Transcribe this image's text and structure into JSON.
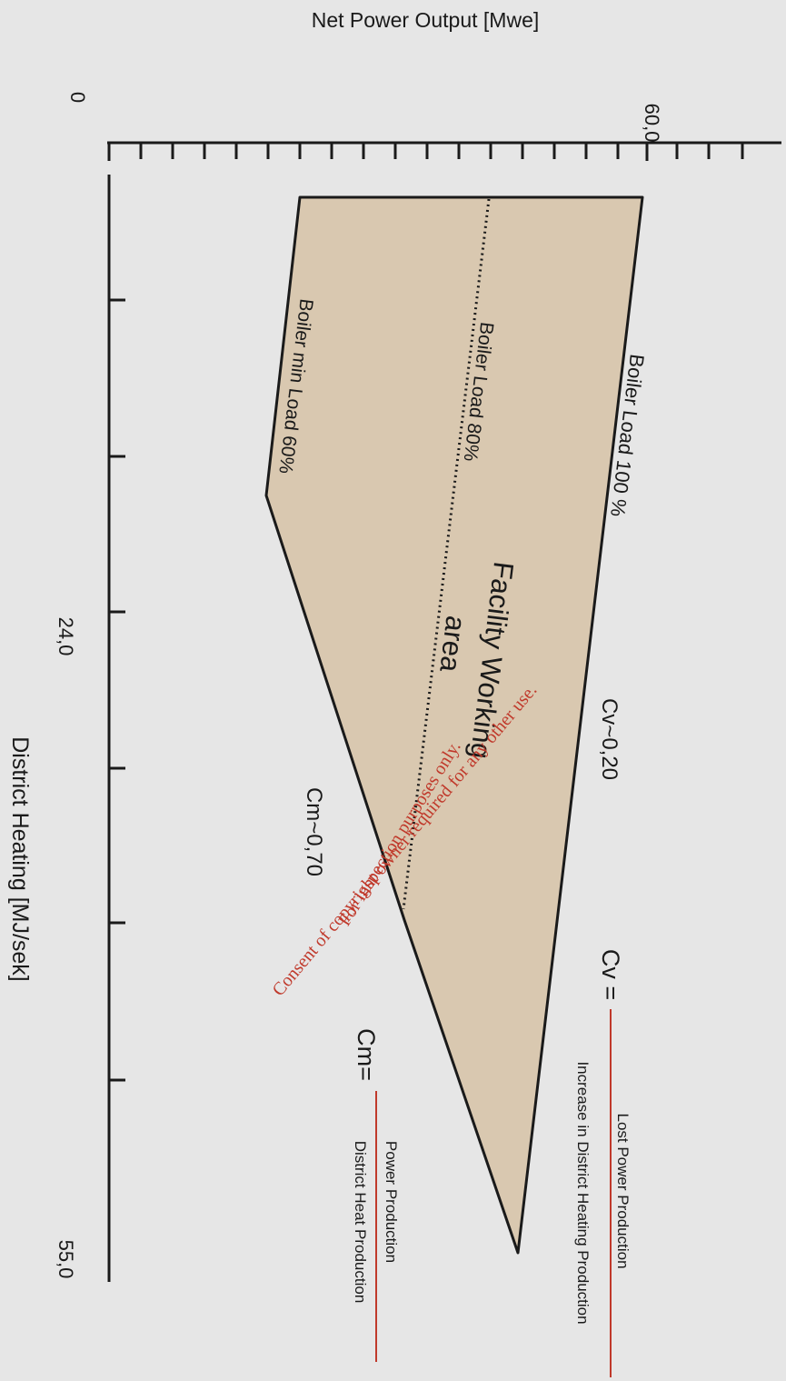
{
  "axes": {
    "y_title": "Net Power Output [Mwe]",
    "y_tick_0": "0",
    "y_tick_max": "60,0",
    "x_title": "District Heating [MJ/sek]",
    "x_tick_mid": "24,0",
    "x_tick_max": "55,0"
  },
  "region": {
    "boiler_100": "Boiler Load 100 %",
    "boiler_80": "Boiler Load 80%",
    "boiler_min": "Boiler min Load 60%",
    "working_area_line1": "Facility Working",
    "working_area_line2": "area",
    "cv_value": "Cv~0,20",
    "cm_value": "Cm~0,70"
  },
  "formulas": {
    "cv_symbol": "Cv =",
    "cv_numerator": "Lost Power Production",
    "cv_denominator": "Increase in District Heating Production",
    "cm_symbol": "Cm=",
    "cm_numerator": "Power Production",
    "cm_denominator": "District Heat Production"
  },
  "watermark": {
    "line1": "For inspection purposes only.",
    "line2": "Consent of copyright owner required for any other use."
  },
  "colors": {
    "fill": "#d9c8b0",
    "line": "#1a1a1a",
    "fraction_bar": "#c0392b",
    "watermark": "#c0392b"
  }
}
